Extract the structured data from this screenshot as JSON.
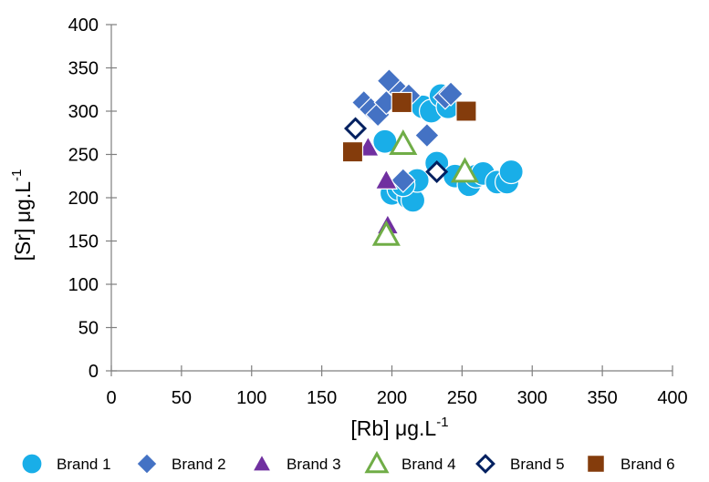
{
  "chart_data": {
    "type": "scatter",
    "xlabel": "[Rb] μg.L",
    "xlabel_sup": "-1",
    "ylabel": "[Sr] μg.L",
    "ylabel_sup": "-1",
    "xlim": [
      0,
      400
    ],
    "ylim": [
      0,
      400
    ],
    "xticks": [
      0,
      50,
      100,
      150,
      200,
      250,
      300,
      350,
      400
    ],
    "yticks": [
      0,
      50,
      100,
      150,
      200,
      250,
      300,
      350,
      400
    ],
    "grid": false,
    "legend_position": "bottom",
    "series": [
      {
        "name": "Brand 1",
        "marker": "circle",
        "color": "#19aee8",
        "points": [
          [
            195,
            265
          ],
          [
            200,
            205
          ],
          [
            205,
            210
          ],
          [
            212,
            200
          ],
          [
            215,
            197
          ],
          [
            218,
            220
          ],
          [
            222,
            305
          ],
          [
            228,
            300
          ],
          [
            232,
            240
          ],
          [
            235,
            318
          ],
          [
            240,
            305
          ],
          [
            245,
            225
          ],
          [
            255,
            215
          ],
          [
            260,
            225
          ],
          [
            265,
            228
          ],
          [
            275,
            218
          ],
          [
            282,
            218
          ],
          [
            285,
            230
          ],
          [
            208,
            215
          ]
        ]
      },
      {
        "name": "Brand 2",
        "marker": "diamond",
        "color": "#4472c4",
        "points": [
          [
            180,
            310
          ],
          [
            185,
            302
          ],
          [
            190,
            296
          ],
          [
            196,
            310
          ],
          [
            198,
            335
          ],
          [
            206,
            322
          ],
          [
            212,
            318
          ],
          [
            225,
            272
          ],
          [
            238,
            316
          ],
          [
            242,
            320
          ],
          [
            208,
            220
          ]
        ]
      },
      {
        "name": "Brand 3",
        "marker": "triangle",
        "color": "#7030a0",
        "points": [
          [
            183,
            258
          ],
          [
            196,
            220
          ],
          [
            197,
            168
          ]
        ]
      },
      {
        "name": "Brand 4",
        "marker": "triangle-open",
        "color": "#70ad47",
        "points": [
          [
            196,
            157
          ],
          [
            208,
            262
          ],
          [
            252,
            230
          ]
        ]
      },
      {
        "name": "Brand 5",
        "marker": "diamond-open",
        "color": "#002060",
        "points": [
          [
            174,
            280
          ],
          [
            232,
            230
          ]
        ]
      },
      {
        "name": "Brand 6",
        "marker": "square",
        "color": "#843c0c",
        "points": [
          [
            172,
            253
          ],
          [
            207,
            310
          ],
          [
            253,
            300
          ]
        ]
      }
    ]
  }
}
